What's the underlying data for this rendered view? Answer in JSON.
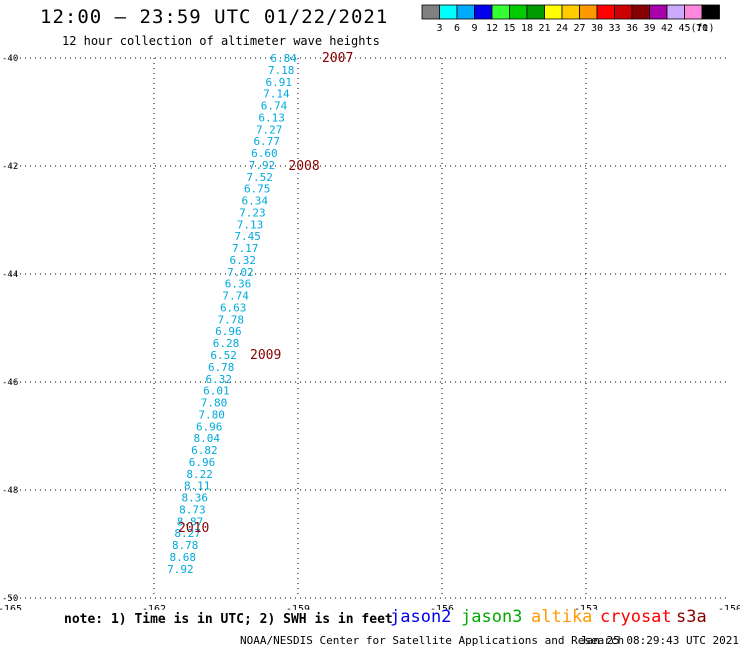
{
  "header": {
    "title": "12:00 – 23:59 UTC 01/22/2021",
    "subtitle": "12 hour collection of altimeter wave heights"
  },
  "legend": {
    "unit": "(ft)",
    "bins": [
      {
        "label": "3",
        "color": "#808080"
      },
      {
        "label": "6",
        "color": "#00ffff"
      },
      {
        "label": "9",
        "color": "#00aaff"
      },
      {
        "label": "12",
        "color": "#0000ee"
      },
      {
        "label": "15",
        "color": "#33ff33"
      },
      {
        "label": "18",
        "color": "#00cc00"
      },
      {
        "label": "21",
        "color": "#009900"
      },
      {
        "label": "24",
        "color": "#ffff00"
      },
      {
        "label": "27",
        "color": "#ffcc00"
      },
      {
        "label": "30",
        "color": "#ff9900"
      },
      {
        "label": "33",
        "color": "#ff0000"
      },
      {
        "label": "36",
        "color": "#cc0000"
      },
      {
        "label": "39",
        "color": "#880000"
      },
      {
        "label": "42",
        "color": "#aa00aa"
      },
      {
        "label": "45",
        "color": "#ccaaff"
      },
      {
        "label": "70",
        "color": "#ff88dd"
      },
      {
        "label": "",
        "color": "#000000"
      }
    ]
  },
  "chart_data": {
    "type": "scatter",
    "title": "12:00 – 23:59 UTC 01/22/2021",
    "subtitle": "12 hour collection of altimeter wave heights",
    "xlim": [
      -165,
      -150
    ],
    "ylim": [
      -50,
      -40
    ],
    "x_ticks": [
      {
        "value": -165,
        "label": "-165"
      },
      {
        "value": -162,
        "label": "-162"
      },
      {
        "value": -159,
        "label": "-159"
      },
      {
        "value": -156,
        "label": "-156"
      },
      {
        "value": -153,
        "label": "-153"
      },
      {
        "value": -150,
        "label": "-150"
      }
    ],
    "y_ticks": [
      {
        "value": -40,
        "label": "-40"
      },
      {
        "value": -42,
        "label": "-42"
      },
      {
        "value": -44,
        "label": "-44"
      },
      {
        "value": -46,
        "label": "-46"
      },
      {
        "value": -48,
        "label": "-48"
      },
      {
        "value": -50,
        "label": "-50"
      }
    ],
    "grid": "dotted",
    "series": [
      {
        "name": "jason2",
        "color": "#00aadd",
        "points": [
          {
            "x": -159.3,
            "y": -40.0,
            "label": "6.84"
          },
          {
            "x": -159.35,
            "y": -40.22,
            "label": "7.18"
          },
          {
            "x": -159.4,
            "y": -40.44,
            "label": "6.91"
          },
          {
            "x": -159.45,
            "y": -40.66,
            "label": "7.14"
          },
          {
            "x": -159.5,
            "y": -40.88,
            "label": "6.74"
          },
          {
            "x": -159.55,
            "y": -41.1,
            "label": "6.13"
          },
          {
            "x": -159.6,
            "y": -41.32,
            "label": "7.27"
          },
          {
            "x": -159.65,
            "y": -41.54,
            "label": "6.77"
          },
          {
            "x": -159.7,
            "y": -41.76,
            "label": "6.60"
          },
          {
            "x": -159.75,
            "y": -41.98,
            "label": "7.92"
          },
          {
            "x": -159.8,
            "y": -42.2,
            "label": "7.52"
          },
          {
            "x": -159.85,
            "y": -42.42,
            "label": "6.75"
          },
          {
            "x": -159.9,
            "y": -42.64,
            "label": "6.34"
          },
          {
            "x": -159.95,
            "y": -42.86,
            "label": "7.23"
          },
          {
            "x": -160.0,
            "y": -43.08,
            "label": "7.13"
          },
          {
            "x": -160.05,
            "y": -43.3,
            "label": "7.45"
          },
          {
            "x": -160.1,
            "y": -43.52,
            "label": "7.17"
          },
          {
            "x": -160.15,
            "y": -43.74,
            "label": "6.32"
          },
          {
            "x": -160.2,
            "y": -43.96,
            "label": "7.02"
          },
          {
            "x": -160.25,
            "y": -44.18,
            "label": "6.36"
          },
          {
            "x": -160.3,
            "y": -44.4,
            "label": "7.74"
          },
          {
            "x": -160.35,
            "y": -44.62,
            "label": "6.63"
          },
          {
            "x": -160.4,
            "y": -44.84,
            "label": "7.78"
          },
          {
            "x": -160.45,
            "y": -45.06,
            "label": "6.96"
          },
          {
            "x": -160.5,
            "y": -45.28,
            "label": "6.28"
          },
          {
            "x": -160.55,
            "y": -45.5,
            "label": "6.52"
          },
          {
            "x": -160.6,
            "y": -45.72,
            "label": "6.78"
          },
          {
            "x": -160.65,
            "y": -45.94,
            "label": "6.32"
          },
          {
            "x": -160.7,
            "y": -46.16,
            "label": "6.01"
          },
          {
            "x": -160.75,
            "y": -46.38,
            "label": "7.80"
          },
          {
            "x": -160.8,
            "y": -46.6,
            "label": "7.80"
          },
          {
            "x": -160.85,
            "y": -46.82,
            "label": "6.96"
          },
          {
            "x": -160.9,
            "y": -47.04,
            "label": "8.04"
          },
          {
            "x": -160.95,
            "y": -47.26,
            "label": "6.82"
          },
          {
            "x": -161.0,
            "y": -47.48,
            "label": "6.96"
          },
          {
            "x": -161.05,
            "y": -47.7,
            "label": "8.22"
          },
          {
            "x": -161.1,
            "y": -47.92,
            "label": "8.11"
          },
          {
            "x": -161.15,
            "y": -48.14,
            "label": "8.36"
          },
          {
            "x": -161.2,
            "y": -48.36,
            "label": "8.73"
          },
          {
            "x": -161.25,
            "y": -48.58,
            "label": "8.87"
          },
          {
            "x": -161.3,
            "y": -48.8,
            "label": "8.27"
          },
          {
            "x": -161.35,
            "y": -49.02,
            "label": "8.78"
          },
          {
            "x": -161.4,
            "y": -49.24,
            "label": "8.68"
          },
          {
            "x": -161.45,
            "y": -49.46,
            "label": "7.92"
          }
        ]
      }
    ],
    "time_labels": {
      "color": "#880000",
      "items": [
        {
          "x": -158.5,
          "y": -40.0,
          "label": "2007"
        },
        {
          "x": -159.2,
          "y": -42.0,
          "label": "2008"
        },
        {
          "x": -160.0,
          "y": -45.5,
          "label": "2009"
        },
        {
          "x": -161.5,
          "y": -48.7,
          "label": "2010"
        }
      ]
    }
  },
  "notes": {
    "text": "note: 1) Time is in UTC; 2) SWH is in feet"
  },
  "satellites": [
    {
      "name": "jason2",
      "color": "#0000ee"
    },
    {
      "name": "jason3",
      "color": "#00aa00"
    },
    {
      "name": "altika",
      "color": "#ff9900"
    },
    {
      "name": "cryosat",
      "color": "#ff0000"
    },
    {
      "name": "s3a",
      "color": "#880000"
    }
  ],
  "footer": {
    "credit": "NOAA/NESDIS Center for Satellite Applications and Research",
    "timestamp": "Jan 25 08:29:43 UTC 2021"
  }
}
